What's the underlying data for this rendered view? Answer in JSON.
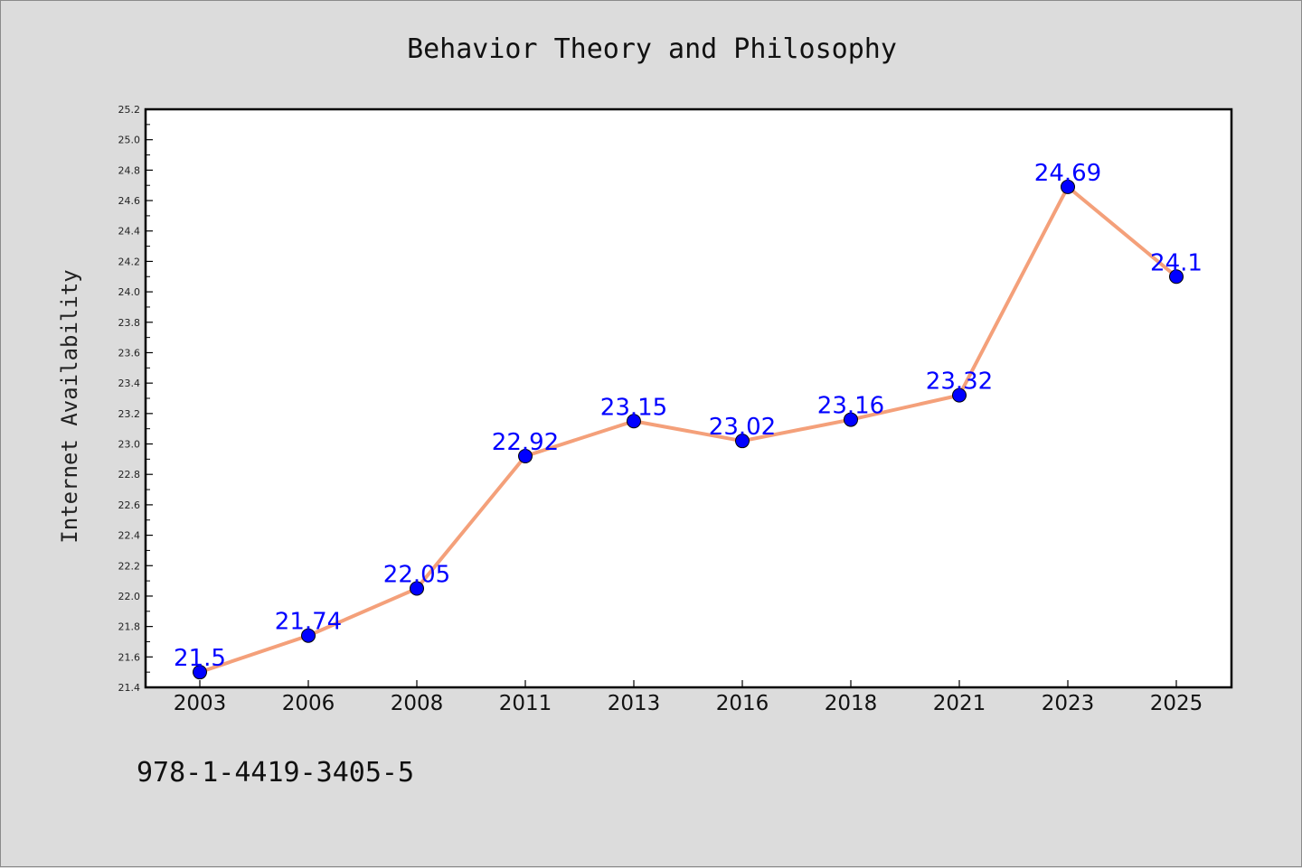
{
  "chart_data": {
    "type": "line",
    "title": "Behavior Theory and Philosophy",
    "xlabel": "",
    "ylabel": "Internet Availability",
    "categories": [
      "2003",
      "2006",
      "2008",
      "2011",
      "2013",
      "2016",
      "2018",
      "2021",
      "2023",
      "2025"
    ],
    "series": [
      {
        "values": [
          21.5,
          21.74,
          22.05,
          22.92,
          23.15,
          23.02,
          23.16,
          23.32,
          24.69,
          24.1
        ]
      }
    ],
    "data_labels": [
      "21.5",
      "21.74",
      "22.05",
      "22.92",
      "23.15",
      "23.02",
      "23.16",
      "23.32",
      "24.69",
      "24.1"
    ],
    "ylim": [
      21.4,
      25.2
    ],
    "y_ticks": [
      "21.4",
      "21.6",
      "21.8",
      "22.0",
      "22.2",
      "22.4",
      "22.6",
      "22.8",
      "23.0",
      "23.2",
      "23.4",
      "23.6",
      "23.8",
      "24.0",
      "24.2",
      "24.4",
      "24.6",
      "24.8",
      "25.0",
      "25.2"
    ],
    "grid": false,
    "line_color": "#f4a07a",
    "marker_color": "#0000ff",
    "label_color": "#0000ff"
  },
  "footer": {
    "isbn": "978-1-4419-3405-5"
  }
}
